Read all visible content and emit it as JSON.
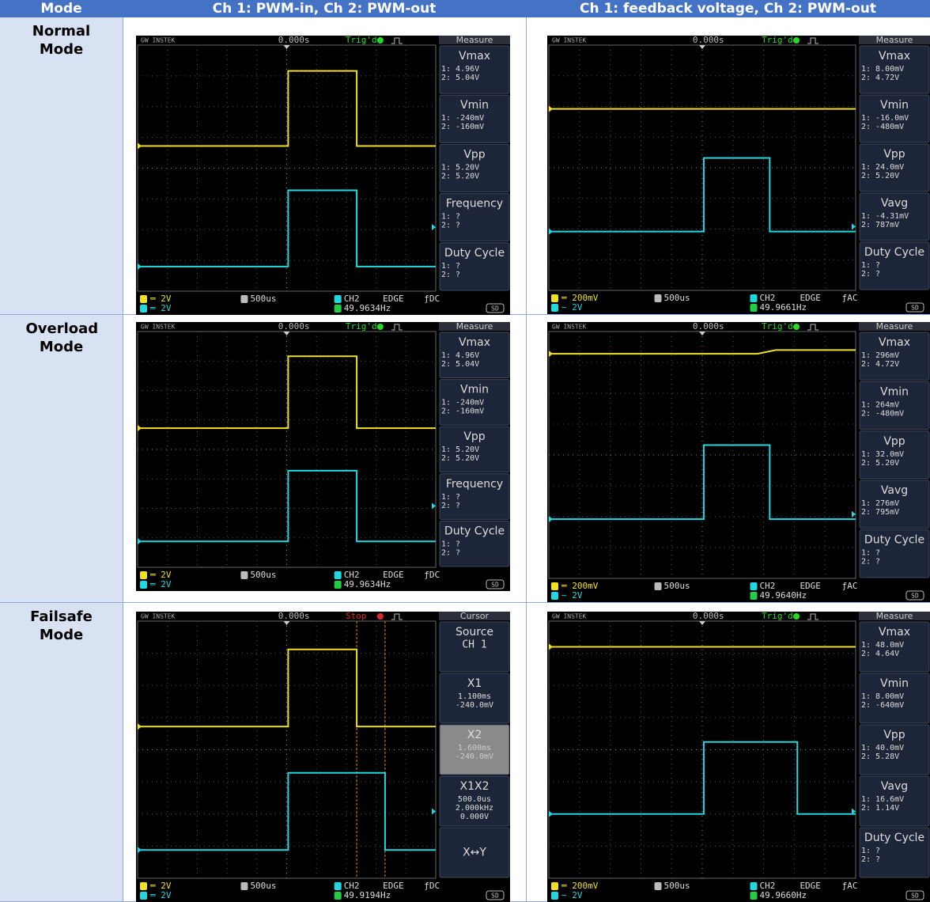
{
  "table": {
    "headers": [
      "Mode",
      "Ch 1: PWM-in, Ch 2: PWM-out",
      "Ch 1: feedback voltage, Ch 2: PWM-out"
    ],
    "rows": [
      {
        "mode": "Normal Mode",
        "scopes": [
          {
            "brand": "GW INSTEK",
            "trigger_time": "0.000s",
            "status": "Trig'd",
            "status_color": "#22dd22",
            "menu_title": "Measure",
            "menu": [
              {
                "title": "Vmax",
                "lines": [
                  "1: 4.96V",
                  "2: 5.04V"
                ]
              },
              {
                "title": "Vmin",
                "lines": [
                  "1: -240mV",
                  "2: -160mV"
                ]
              },
              {
                "title": "Vpp",
                "lines": [
                  "1: 5.20V",
                  "2: 5.20V"
                ]
              },
              {
                "title": "Frequency",
                "lines": [
                  "1:  ?",
                  "2:  ?"
                ]
              },
              {
                "title": "Duty Cycle",
                "lines": [
                  "1:  ?",
                  "2:  ?"
                ]
              }
            ],
            "footer": {
              "ch1": "═ 2V",
              "ch2": "═ 2V",
              "timebase": "500us",
              "trigger_source": "CH2",
              "trigger_type": "EDGE",
              "coupling": "ƒDC",
              "frequency": "49.9634Hz",
              "storage": "SD"
            }
          },
          {
            "brand": "GW INSTEK",
            "trigger_time": "0.000s",
            "status": "Trig'd",
            "status_color": "#22dd22",
            "menu_title": "Measure",
            "menu": [
              {
                "title": "Vmax",
                "lines": [
                  "1: 8.00mV",
                  "2: 4.72V"
                ]
              },
              {
                "title": "Vmin",
                "lines": [
                  "1: -16.0mV",
                  "2: -480mV"
                ]
              },
              {
                "title": "Vpp",
                "lines": [
                  "1: 24.0mV",
                  "2: 5.20V"
                ]
              },
              {
                "title": "Vavg",
                "lines": [
                  "1: -4.31mV",
                  "2: 787mV"
                ]
              },
              {
                "title": "Duty Cycle",
                "lines": [
                  "1:  ?",
                  "2:  ?"
                ]
              }
            ],
            "footer": {
              "ch1": "═ 200mV",
              "ch2": "∼ 2V",
              "timebase": "500us",
              "trigger_source": "CH2",
              "trigger_type": "EDGE",
              "coupling": "ƒAC",
              "frequency": "49.9661Hz",
              "storage": "SD"
            }
          }
        ]
      },
      {
        "mode": "Overload Mode",
        "scopes": [
          {
            "brand": "GW INSTEK",
            "trigger_time": "0.000s",
            "status": "Trig'd",
            "status_color": "#22dd22",
            "menu_title": "Measure",
            "menu": [
              {
                "title": "Vmax",
                "lines": [
                  "1: 4.96V",
                  "2: 5.04V"
                ]
              },
              {
                "title": "Vmin",
                "lines": [
                  "1: -240mV",
                  "2: -160mV"
                ]
              },
              {
                "title": "Vpp",
                "lines": [
                  "1: 5.20V",
                  "2: 5.20V"
                ]
              },
              {
                "title": "Frequency",
                "lines": [
                  "1:  ?",
                  "2:  ?"
                ]
              },
              {
                "title": "Duty Cycle",
                "lines": [
                  "1:  ?",
                  "2:  ?"
                ]
              }
            ],
            "footer": {
              "ch1": "═ 2V",
              "ch2": "═ 2V",
              "timebase": "500us",
              "trigger_source": "CH2",
              "trigger_type": "EDGE",
              "coupling": "ƒDC",
              "frequency": "49.9634Hz",
              "storage": "SD"
            }
          },
          {
            "brand": "GW INSTEK",
            "trigger_time": "0.000s",
            "status": "Trig'd",
            "status_color": "#22dd22",
            "menu_title": "Measure",
            "menu": [
              {
                "title": "Vmax",
                "lines": [
                  "1: 296mV",
                  "2: 4.72V"
                ]
              },
              {
                "title": "Vmin",
                "lines": [
                  "1: 264mV",
                  "2: -480mV"
                ]
              },
              {
                "title": "Vpp",
                "lines": [
                  "1: 32.0mV",
                  "2: 5.20V"
                ]
              },
              {
                "title": "Vavg",
                "lines": [
                  "1: 276mV",
                  "2: 795mV"
                ]
              },
              {
                "title": "Duty Cycle",
                "lines": [
                  "1:  ?",
                  "2:  ?"
                ]
              }
            ],
            "footer": {
              "ch1": "═ 200mV",
              "ch2": "∼ 2V",
              "timebase": "500us",
              "trigger_source": "CH2",
              "trigger_type": "EDGE",
              "coupling": "ƒAC",
              "frequency": "49.9640Hz",
              "storage": "SD"
            }
          }
        ]
      },
      {
        "mode": "Failsafe Mode",
        "scopes": [
          {
            "brand": "GW INSTEK",
            "trigger_time": "0.000s",
            "status": "Stop",
            "status_color": "#e02828",
            "menu_title": "Cursor",
            "menu": [
              {
                "title": "Source",
                "lines": [
                  "CH 1"
                ]
              },
              {
                "title": "X1",
                "lines": [
                  "1.100ms",
                  "-240.0mV"
                ]
              },
              {
                "title": "X2",
                "lines": [
                  "1.600ms",
                  "-240.0mV"
                ],
                "selected": true
              },
              {
                "title": "X1X2",
                "lines": [
                  "500.0us",
                  "2.000kHz",
                  "0.000V"
                ]
              },
              {
                "title": "X↔Y",
                "lines": []
              }
            ],
            "footer": {
              "ch1": "═ 2V",
              "ch2": "═ 2V",
              "timebase": "500us",
              "trigger_source": "CH2",
              "trigger_type": "EDGE",
              "coupling": "ƒDC",
              "frequency": "49.9194Hz",
              "storage": "SD"
            }
          },
          {
            "brand": "GW INSTEK",
            "trigger_time": "0.000s",
            "status": "Trig'd",
            "status_color": "#22dd22",
            "menu_title": "Measure",
            "menu": [
              {
                "title": "Vmax",
                "lines": [
                  "1: 48.0mV",
                  "2: 4.64V"
                ]
              },
              {
                "title": "Vmin",
                "lines": [
                  "1: 8.00mV",
                  "2: -640mV"
                ]
              },
              {
                "title": "Vpp",
                "lines": [
                  "1: 40.0mV",
                  "2: 5.28V"
                ]
              },
              {
                "title": "Vavg",
                "lines": [
                  "1: 16.6mV",
                  "2: 1.14V"
                ]
              },
              {
                "title": "Duty Cycle",
                "lines": [
                  "1:  ?",
                  "2:  ?"
                ]
              }
            ],
            "footer": {
              "ch1": "═ 200mV",
              "ch2": "∼ 2V",
              "timebase": "500us",
              "trigger_source": "CH2",
              "trigger_type": "EDGE",
              "coupling": "ƒAC",
              "frequency": "49.9660Hz",
              "storage": "SD"
            }
          }
        ]
      }
    ]
  }
}
